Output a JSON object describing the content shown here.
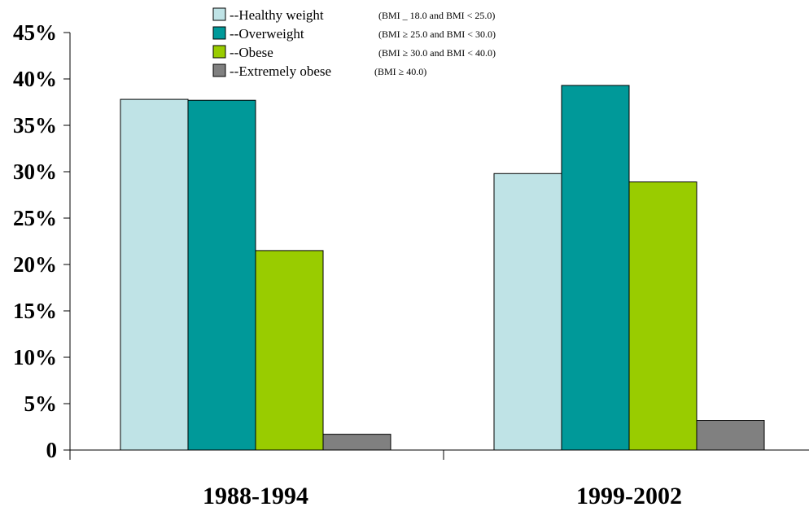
{
  "chart_data": {
    "type": "bar",
    "categories": [
      "1988-1994",
      "1999-2002"
    ],
    "series": [
      {
        "name": "--Healthy weight",
        "note": "(BMI _ 18.0 and BMI < 25.0)",
        "color": "#bfe3e6",
        "values": [
          37.8,
          29.8
        ]
      },
      {
        "name": "--Overweight",
        "note": "(BMI ≥ 25.0 and BMI < 30.0)",
        "color": "#009999",
        "values": [
          37.7,
          39.3
        ]
      },
      {
        "name": "--Obese",
        "note": "(BMI ≥ 30.0 and BMI < 40.0)",
        "color": "#99cc00",
        "values": [
          21.5,
          28.9
        ]
      },
      {
        "name": "--Extremely obese",
        "note": "(BMI ≥ 40.0)",
        "color": "#808080",
        "values": [
          1.7,
          3.2
        ]
      }
    ],
    "yticks": [
      "0",
      "5%",
      "10%",
      "15%",
      "20%",
      "25%",
      "30%",
      "35%",
      "40%",
      "45%"
    ],
    "ylim": [
      0,
      45
    ],
    "grid": false,
    "legend_position": "top"
  }
}
